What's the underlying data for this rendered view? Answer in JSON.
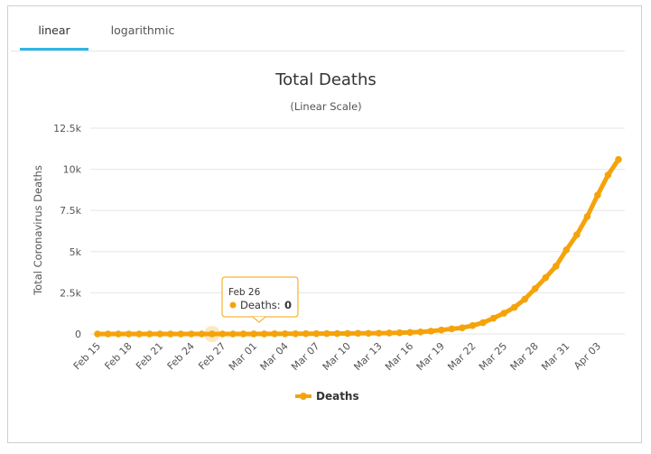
{
  "tabs": [
    {
      "label": "linear",
      "active": true
    },
    {
      "label": "logarithmic",
      "active": false
    }
  ],
  "colors": {
    "series": "#f5a30a",
    "grid": "#e6e6e6",
    "tab_accent": "#2db7e6"
  },
  "tooltip": {
    "date": "Feb 26",
    "label": "Deaths:",
    "value": "0"
  },
  "chart_data": {
    "type": "line",
    "title": "Total Deaths",
    "subtitle": "(Linear Scale)",
    "ylabel": "Total Coronavirus Deaths",
    "xlabel": "",
    "ylim": [
      0,
      12500
    ],
    "yticks": [
      0,
      2500,
      5000,
      7500,
      10000,
      12500
    ],
    "ytick_labels": [
      "0",
      "2.5k",
      "5k",
      "7.5k",
      "10k",
      "12.5k"
    ],
    "x_tick_labels": [
      "Feb 15",
      "Feb 18",
      "Feb 21",
      "Feb 24",
      "Feb 27",
      "Mar 01",
      "Mar 04",
      "Mar 07",
      "Mar 10",
      "Mar 13",
      "Mar 16",
      "Mar 19",
      "Mar 22",
      "Mar 25",
      "Mar 28",
      "Mar 31",
      "Apr 03"
    ],
    "grid": true,
    "legend_position": "bottom-center",
    "series": [
      {
        "name": "Deaths",
        "x": [
          "Feb 15",
          "Feb 16",
          "Feb 17",
          "Feb 18",
          "Feb 19",
          "Feb 20",
          "Feb 21",
          "Feb 22",
          "Feb 23",
          "Feb 24",
          "Feb 25",
          "Feb 26",
          "Feb 27",
          "Feb 28",
          "Feb 29",
          "Mar 01",
          "Mar 02",
          "Mar 03",
          "Mar 04",
          "Mar 05",
          "Mar 06",
          "Mar 07",
          "Mar 08",
          "Mar 09",
          "Mar 10",
          "Mar 11",
          "Mar 12",
          "Mar 13",
          "Mar 14",
          "Mar 15",
          "Mar 16",
          "Mar 17",
          "Mar 18",
          "Mar 19",
          "Mar 20",
          "Mar 21",
          "Mar 22",
          "Mar 23",
          "Mar 24",
          "Mar 25",
          "Mar 26",
          "Mar 27",
          "Mar 28",
          "Mar 29",
          "Mar 30",
          "Mar 31",
          "Apr 01",
          "Apr 02",
          "Apr 03",
          "Apr 04",
          "Apr 05"
        ],
        "values": [
          0,
          0,
          0,
          0,
          0,
          0,
          0,
          0,
          0,
          0,
          0,
          0,
          0,
          0,
          1,
          1,
          6,
          9,
          11,
          12,
          15,
          19,
          22,
          26,
          30,
          38,
          41,
          48,
          58,
          73,
          95,
          121,
          171,
          239,
          309,
          374,
          509,
          689,
          957,
          1260,
          1614,
          2110,
          2754,
          3415,
          4117,
          5112,
          6024,
          7132,
          8441,
          9660,
          10600
        ]
      }
    ]
  },
  "legend": {
    "series_name": "Deaths"
  }
}
